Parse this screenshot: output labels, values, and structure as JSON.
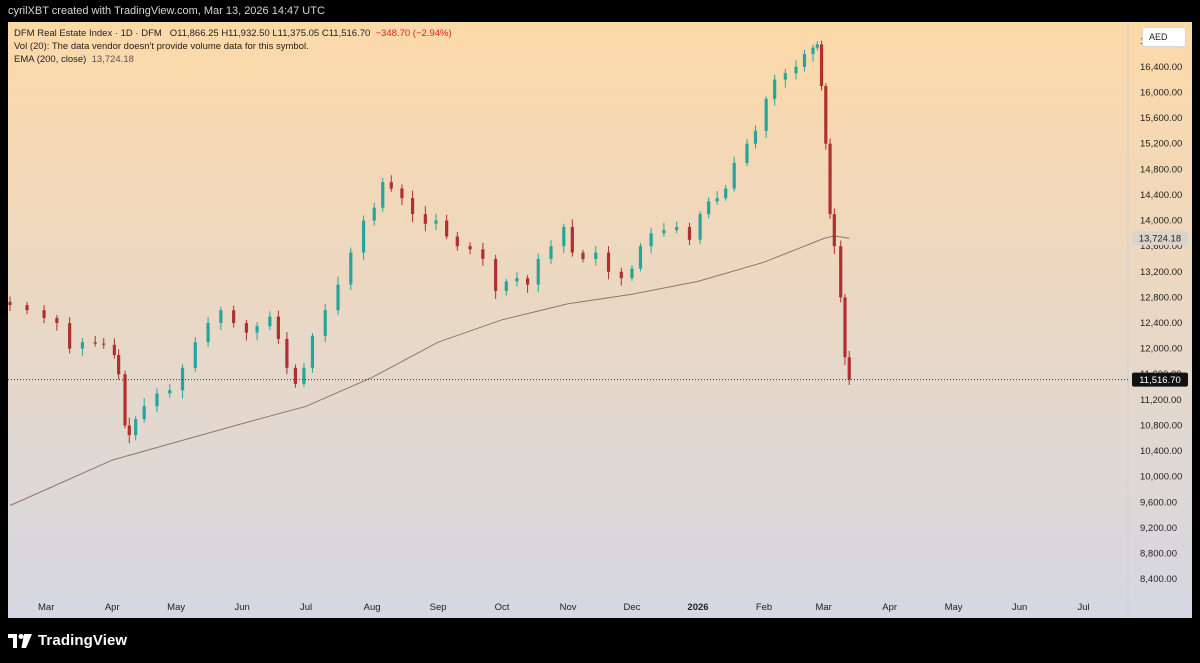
{
  "header": {
    "attribution": "cyrilXBT created with TradingView.com, Mar 13, 2026 14:47 UTC"
  },
  "legend": {
    "symbol": "DFM Real Estate Index · 1D · DFM",
    "ohlc": "O11,866.25  H11,932.50  L11,375.05  C11,516.70",
    "change": "−348.70 (−2.94%)",
    "volume_note": "Vol (20): The data vendor doesn't provide volume data for this symbol.",
    "ema_label": "EMA (200, close)",
    "ema_value": "13,724.18"
  },
  "currency_button": "AED",
  "brand": {
    "logo_text": "TradingView",
    "logo_icon": "tradingview-logo-icon"
  },
  "colors": {
    "up": "#26a69a",
    "down": "#b03030",
    "ema": "#8a7a6a",
    "gradient_top": "#fdd9a8",
    "gradient_bottom": "#d5d7e3"
  },
  "chart_data": {
    "type": "candlestick",
    "y_scale": "linear",
    "ylim": [
      8200,
      17100
    ],
    "grid": false,
    "y_ticks": [
      8400,
      8800,
      9200,
      9600,
      10000,
      10400,
      10800,
      11200,
      11600,
      12000,
      12400,
      12800,
      13200,
      13600,
      14000,
      14400,
      14800,
      15200,
      15600,
      16000,
      16400,
      16800
    ],
    "y_tick_labels": [
      "8,400.00",
      "8,800.00",
      "9,200.00",
      "9,600.00",
      "10,000.00",
      "10,400.00",
      "10,800.00",
      "11,200.00",
      "11,600.00",
      "12,000.00",
      "12,400.00",
      "12,800.00",
      "13,200.00",
      "13,600.00",
      "14,000.00",
      "14,400.00",
      "14,800.00",
      "15,200.00",
      "15,600.00",
      "16,000.00",
      "16,400.00",
      "16,800.00"
    ],
    "x_ticks": [
      {
        "label": "Mar",
        "date": "2025-03-01",
        "bold": false
      },
      {
        "label": "Apr",
        "date": "2025-04-01",
        "bold": false
      },
      {
        "label": "May",
        "date": "2025-05-01",
        "bold": false
      },
      {
        "label": "Jun",
        "date": "2025-06-01",
        "bold": false
      },
      {
        "label": "Jul",
        "date": "2025-07-01",
        "bold": false
      },
      {
        "label": "Aug",
        "date": "2025-08-01",
        "bold": false
      },
      {
        "label": "Sep",
        "date": "2025-09-01",
        "bold": false
      },
      {
        "label": "Oct",
        "date": "2025-10-01",
        "bold": false
      },
      {
        "label": "Nov",
        "date": "2025-11-01",
        "bold": false
      },
      {
        "label": "Dec",
        "date": "2025-12-01",
        "bold": false
      },
      {
        "label": "2026",
        "date": "2026-01-01",
        "bold": true
      },
      {
        "label": "Feb",
        "date": "2026-02-01",
        "bold": false
      },
      {
        "label": "Mar",
        "date": "2026-03-01",
        "bold": false
      },
      {
        "label": "Apr",
        "date": "2026-04-01",
        "bold": false
      },
      {
        "label": "May",
        "date": "2026-05-01",
        "bold": false
      },
      {
        "label": "Jun",
        "date": "2026-06-01",
        "bold": false
      },
      {
        "label": "Jul",
        "date": "2026-07-01",
        "bold": false
      }
    ],
    "price_close_series": [
      {
        "date": "2025-02-12",
        "close": 12680
      },
      {
        "date": "2025-02-20",
        "close": 12600
      },
      {
        "date": "2025-02-28",
        "close": 12480
      },
      {
        "date": "2025-03-06",
        "close": 12400
      },
      {
        "date": "2025-03-12",
        "close": 12000
      },
      {
        "date": "2025-03-18",
        "close": 12100
      },
      {
        "date": "2025-03-24",
        "close": 12080
      },
      {
        "date": "2025-03-28",
        "close": 12060
      },
      {
        "date": "2025-04-02",
        "close": 11900
      },
      {
        "date": "2025-04-04",
        "close": 11600
      },
      {
        "date": "2025-04-07",
        "close": 10800
      },
      {
        "date": "2025-04-09",
        "close": 10650
      },
      {
        "date": "2025-04-12",
        "close": 10900
      },
      {
        "date": "2025-04-16",
        "close": 11100
      },
      {
        "date": "2025-04-22",
        "close": 11300
      },
      {
        "date": "2025-04-28",
        "close": 11350
      },
      {
        "date": "2025-05-04",
        "close": 11700
      },
      {
        "date": "2025-05-10",
        "close": 12100
      },
      {
        "date": "2025-05-16",
        "close": 12400
      },
      {
        "date": "2025-05-22",
        "close": 12600
      },
      {
        "date": "2025-05-28",
        "close": 12400
      },
      {
        "date": "2025-06-03",
        "close": 12250
      },
      {
        "date": "2025-06-08",
        "close": 12350
      },
      {
        "date": "2025-06-14",
        "close": 12500
      },
      {
        "date": "2025-06-18",
        "close": 12150
      },
      {
        "date": "2025-06-22",
        "close": 11700
      },
      {
        "date": "2025-06-26",
        "close": 11450
      },
      {
        "date": "2025-06-30",
        "close": 11700
      },
      {
        "date": "2025-07-04",
        "close": 12200
      },
      {
        "date": "2025-07-10",
        "close": 12600
      },
      {
        "date": "2025-07-16",
        "close": 13000
      },
      {
        "date": "2025-07-22",
        "close": 13500
      },
      {
        "date": "2025-07-28",
        "close": 14000
      },
      {
        "date": "2025-08-02",
        "close": 14200
      },
      {
        "date": "2025-08-06",
        "close": 14600
      },
      {
        "date": "2025-08-10",
        "close": 14500
      },
      {
        "date": "2025-08-15",
        "close": 14350
      },
      {
        "date": "2025-08-20",
        "close": 14100
      },
      {
        "date": "2025-08-26",
        "close": 13950
      },
      {
        "date": "2025-08-31",
        "close": 14000
      },
      {
        "date": "2025-09-05",
        "close": 13750
      },
      {
        "date": "2025-09-10",
        "close": 13600
      },
      {
        "date": "2025-09-16",
        "close": 13550
      },
      {
        "date": "2025-09-22",
        "close": 13400
      },
      {
        "date": "2025-09-28",
        "close": 12900
      },
      {
        "date": "2025-10-03",
        "close": 13050
      },
      {
        "date": "2025-10-08",
        "close": 13100
      },
      {
        "date": "2025-10-13",
        "close": 13000
      },
      {
        "date": "2025-10-18",
        "close": 13400
      },
      {
        "date": "2025-10-24",
        "close": 13600
      },
      {
        "date": "2025-10-30",
        "close": 13900
      },
      {
        "date": "2025-11-03",
        "close": 13500
      },
      {
        "date": "2025-11-08",
        "close": 13400
      },
      {
        "date": "2025-11-14",
        "close": 13500
      },
      {
        "date": "2025-11-20",
        "close": 13200
      },
      {
        "date": "2025-11-26",
        "close": 13100
      },
      {
        "date": "2025-12-01",
        "close": 13250
      },
      {
        "date": "2025-12-05",
        "close": 13600
      },
      {
        "date": "2025-12-10",
        "close": 13800
      },
      {
        "date": "2025-12-16",
        "close": 13850
      },
      {
        "date": "2025-12-22",
        "close": 13900
      },
      {
        "date": "2025-12-28",
        "close": 13700
      },
      {
        "date": "2026-01-02",
        "close": 14100
      },
      {
        "date": "2026-01-06",
        "close": 14300
      },
      {
        "date": "2026-01-10",
        "close": 14350
      },
      {
        "date": "2026-01-14",
        "close": 14500
      },
      {
        "date": "2026-01-18",
        "close": 14900
      },
      {
        "date": "2026-01-24",
        "close": 15200
      },
      {
        "date": "2026-01-28",
        "close": 15400
      },
      {
        "date": "2026-02-02",
        "close": 15900
      },
      {
        "date": "2026-02-06",
        "close": 16200
      },
      {
        "date": "2026-02-11",
        "close": 16300
      },
      {
        "date": "2026-02-16",
        "close": 16400
      },
      {
        "date": "2026-02-20",
        "close": 16600
      },
      {
        "date": "2026-02-24",
        "close": 16700
      },
      {
        "date": "2026-02-26",
        "close": 16750
      },
      {
        "date": "2026-02-28",
        "close": 16100
      },
      {
        "date": "2026-03-02",
        "close": 15200
      },
      {
        "date": "2026-03-04",
        "close": 14100
      },
      {
        "date": "2026-03-06",
        "close": 13600
      },
      {
        "date": "2026-03-09",
        "close": 12800
      },
      {
        "date": "2026-03-11",
        "close": 11865
      },
      {
        "date": "2026-03-13",
        "close": 11516.7
      }
    ],
    "ema_series": [
      {
        "date": "2025-02-12",
        "value": 9550
      },
      {
        "date": "2025-03-01",
        "value": 9800
      },
      {
        "date": "2025-04-01",
        "value": 10260
      },
      {
        "date": "2025-05-01",
        "value": 10540
      },
      {
        "date": "2025-06-01",
        "value": 10830
      },
      {
        "date": "2025-07-01",
        "value": 11100
      },
      {
        "date": "2025-08-01",
        "value": 11550
      },
      {
        "date": "2025-09-01",
        "value": 12100
      },
      {
        "date": "2025-10-01",
        "value": 12450
      },
      {
        "date": "2025-11-01",
        "value": 12700
      },
      {
        "date": "2025-12-01",
        "value": 12850
      },
      {
        "date": "2026-01-01",
        "value": 13050
      },
      {
        "date": "2026-02-01",
        "value": 13350
      },
      {
        "date": "2026-03-01",
        "value": 13720
      },
      {
        "date": "2026-03-06",
        "value": 13760
      },
      {
        "date": "2026-03-13",
        "value": 13724.18
      }
    ],
    "last_price": {
      "value": 11516.7,
      "label": "11,516.70"
    },
    "ema_last": {
      "value": 13724.18,
      "label": "13,724.18"
    },
    "currency": "AED"
  }
}
